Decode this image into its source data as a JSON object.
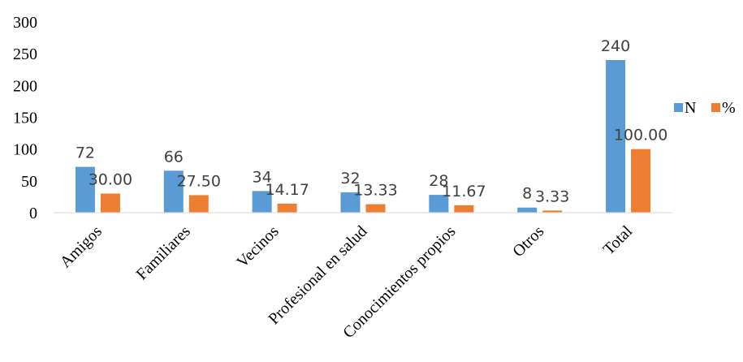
{
  "chart_data": {
    "type": "bar",
    "categories": [
      "Amigos",
      "Familiares",
      "Vecinos",
      "Profesional en salud",
      "Conocimientos propios",
      "Otros",
      "Total"
    ],
    "series": [
      {
        "name": "N",
        "color": "#5B9BD5",
        "values": [
          72,
          66,
          34,
          32,
          28,
          8,
          240
        ],
        "labels": [
          "72",
          "66",
          "34",
          "32",
          "28",
          "8",
          "240"
        ]
      },
      {
        "name": "%",
        "color": "#ED7D31",
        "values": [
          30.0,
          27.5,
          14.17,
          13.33,
          11.67,
          3.33,
          100.0
        ],
        "labels": [
          "30.00",
          "27.50",
          "14.17",
          "13.33",
          "11.67",
          "3.33",
          "100.00"
        ]
      }
    ],
    "ylim": [
      0,
      300
    ],
    "yticks": [
      "0",
      "50",
      "100",
      "150",
      "200",
      "250",
      "300"
    ],
    "grid": false,
    "legend": "right",
    "axis_color": "#D9D9D9"
  }
}
